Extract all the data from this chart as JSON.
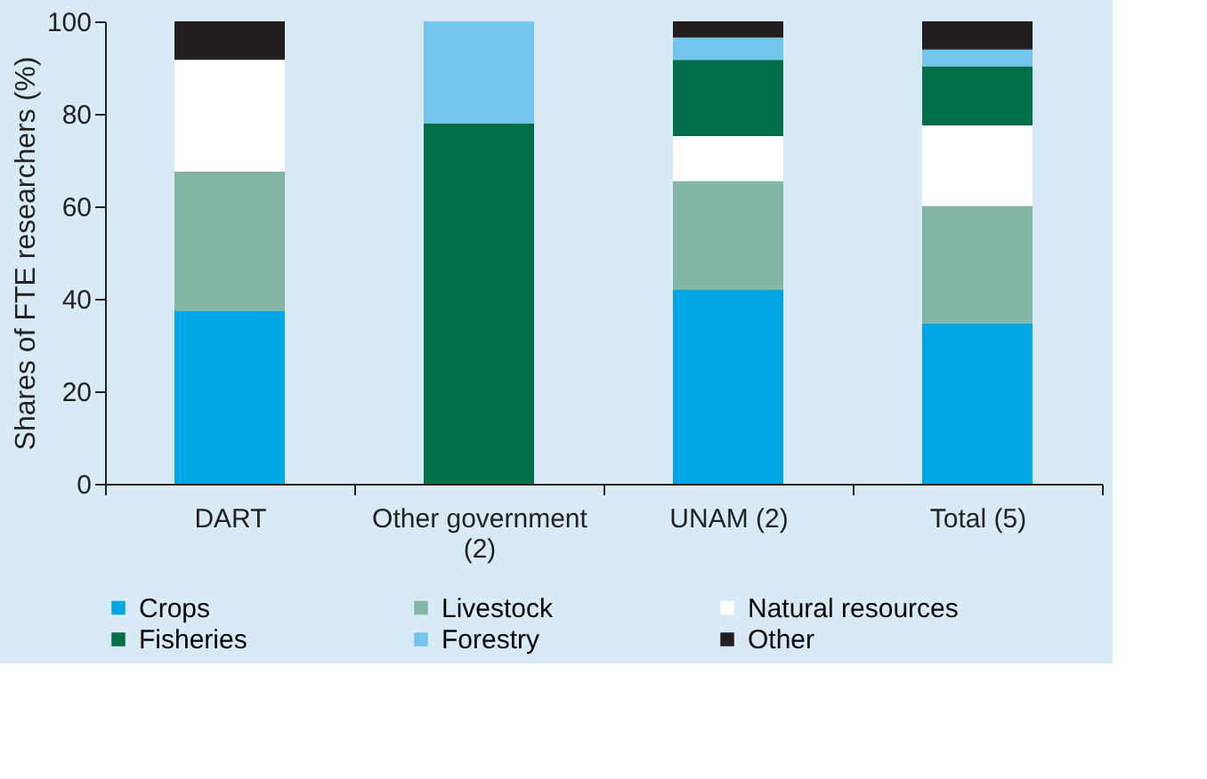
{
  "chart_data": {
    "type": "bar",
    "stacked": true,
    "ylabel": "Shares of FTE researchers (%)",
    "categories": [
      "DART",
      "Other government (2)",
      "UNAM (2)",
      "Total (5)"
    ],
    "series": [
      {
        "name": "Crops",
        "color": "#00a5e3",
        "values": [
          37.3,
          0,
          41.9,
          34.7
        ]
      },
      {
        "name": "Livestock",
        "color": "#83b6a4",
        "values": [
          30.2,
          0,
          23.6,
          25.4
        ]
      },
      {
        "name": "Natural resources",
        "color": "#ffffff",
        "values": [
          24.2,
          0,
          9.7,
          17.4
        ]
      },
      {
        "name": "Fisheries",
        "color": "#006f47",
        "values": [
          0,
          77.9,
          16.5,
          12.8
        ]
      },
      {
        "name": "Forestry",
        "color": "#74c5ee",
        "values": [
          0,
          22.1,
          4.8,
          3.6
        ]
      },
      {
        "name": "Other",
        "color": "#231f20",
        "values": [
          8.3,
          0,
          3.5,
          6.1
        ]
      }
    ],
    "ylim": [
      0,
      100
    ],
    "yticks": [
      0,
      20,
      40,
      60,
      80,
      100
    ],
    "grid": false,
    "legend": "bottom"
  }
}
